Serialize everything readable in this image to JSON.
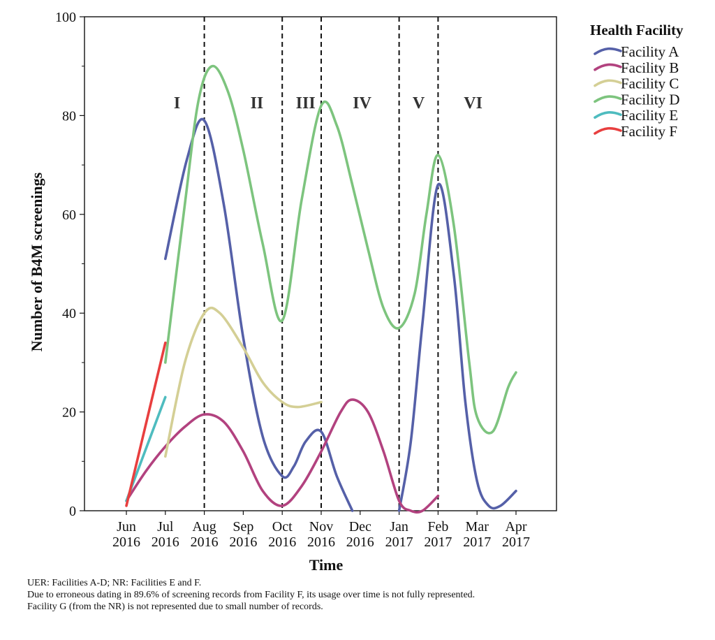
{
  "chart_data": {
    "type": "line",
    "xlabel": "Time",
    "ylabel": "Number of B4M screenings",
    "ylim": [
      0,
      100
    ],
    "yticks": [
      0,
      20,
      40,
      60,
      80,
      100
    ],
    "categories": [
      {
        "month": "Jun",
        "year": "2016"
      },
      {
        "month": "Jul",
        "year": "2016"
      },
      {
        "month": "Aug",
        "year": "2016"
      },
      {
        "month": "Sep",
        "year": "2016"
      },
      {
        "month": "Oct",
        "year": "2016"
      },
      {
        "month": "Nov",
        "year": "2016"
      },
      {
        "month": "Dec",
        "year": "2016"
      },
      {
        "month": "Jan",
        "year": "2017"
      },
      {
        "month": "Feb",
        "year": "2017"
      },
      {
        "month": "Mar",
        "year": "2017"
      },
      {
        "month": "Apr",
        "year": "2017"
      }
    ],
    "period_dividers": [
      "Aug 2016",
      "Oct 2016",
      "Nov 2016",
      "Jan 2017",
      "Feb 2017"
    ],
    "periods": [
      {
        "label": "I",
        "at": 1.3
      },
      {
        "label": "II",
        "at": 3.35
      },
      {
        "label": "III",
        "at": 4.6
      },
      {
        "label": "IV",
        "at": 6.05
      },
      {
        "label": "V",
        "at": 7.5
      },
      {
        "label": "VI",
        "at": 8.9
      }
    ],
    "series": [
      {
        "name": "Facility A",
        "color": "#5560a8",
        "points": [
          [
            1,
            51
          ],
          [
            1.55,
            71
          ],
          [
            2,
            79
          ],
          [
            2.5,
            62
          ],
          [
            3,
            35
          ],
          [
            3.5,
            15
          ],
          [
            4,
            7
          ],
          [
            4.3,
            9
          ],
          [
            4.6,
            14
          ],
          [
            5,
            16
          ],
          [
            5.4,
            7
          ],
          [
            5.8,
            0
          ]
        ],
        "points2": [
          [
            7,
            0
          ],
          [
            7.3,
            14
          ],
          [
            7.6,
            38
          ],
          [
            8,
            66
          ],
          [
            8.4,
            48
          ],
          [
            8.7,
            22
          ],
          [
            9,
            6
          ],
          [
            9.3,
            1
          ],
          [
            9.6,
            1
          ],
          [
            10,
            4
          ]
        ]
      },
      {
        "name": "Facility B",
        "color": "#b2427f",
        "points": [
          [
            0,
            2
          ],
          [
            0.5,
            8
          ],
          [
            1,
            13
          ],
          [
            1.5,
            17
          ],
          [
            2,
            19.5
          ],
          [
            2.5,
            18
          ],
          [
            3,
            12
          ],
          [
            3.5,
            4
          ],
          [
            4,
            1
          ],
          [
            4.5,
            5
          ],
          [
            5,
            12
          ],
          [
            5.5,
            20
          ],
          [
            5.8,
            22.5
          ],
          [
            6.2,
            20
          ],
          [
            6.6,
            12
          ],
          [
            7,
            2
          ],
          [
            7.3,
            0
          ],
          [
            7.6,
            0
          ],
          [
            8,
            3
          ]
        ]
      },
      {
        "name": "Facility C",
        "color": "#d4cf95",
        "points": [
          [
            1,
            11
          ],
          [
            1.5,
            30
          ],
          [
            2,
            40
          ],
          [
            2.4,
            40
          ],
          [
            3,
            33
          ],
          [
            3.5,
            26
          ],
          [
            4,
            22
          ],
          [
            4.4,
            21
          ],
          [
            5,
            22
          ]
        ]
      },
      {
        "name": "Facility D",
        "color": "#7dc47e",
        "points": [
          [
            1,
            30
          ],
          [
            1.5,
            62
          ],
          [
            1.85,
            83
          ],
          [
            2.2,
            90
          ],
          [
            2.6,
            85
          ],
          [
            3,
            73
          ],
          [
            3.5,
            54
          ],
          [
            4,
            38.5
          ],
          [
            4.5,
            63
          ],
          [
            5,
            82
          ],
          [
            5.4,
            78
          ],
          [
            5.8,
            66
          ],
          [
            6.2,
            53
          ],
          [
            6.6,
            41
          ],
          [
            7,
            37
          ],
          [
            7.4,
            44
          ],
          [
            7.7,
            60
          ],
          [
            8,
            72
          ],
          [
            8.4,
            58
          ],
          [
            8.8,
            30
          ],
          [
            9,
            19
          ],
          [
            9.4,
            16
          ],
          [
            9.8,
            25
          ],
          [
            10,
            28
          ]
        ]
      },
      {
        "name": "Facility E",
        "color": "#4ebcbf",
        "points": [
          [
            0,
            2
          ],
          [
            1,
            23
          ]
        ]
      },
      {
        "name": "Facility F",
        "color": "#e83f3f",
        "points": [
          [
            0,
            1
          ],
          [
            1,
            34
          ]
        ]
      }
    ],
    "legend": {
      "title": "Health Facility",
      "position": "top-right"
    }
  },
  "footnotes": [
    "UER: Facilities A-D; NR: Facilities E and F.",
    "Due to erroneous dating in 89.6% of screening records from Facility F, its usage over time is not fully represented.",
    "Facility G (from the NR) is not represented due to small number of records."
  ]
}
